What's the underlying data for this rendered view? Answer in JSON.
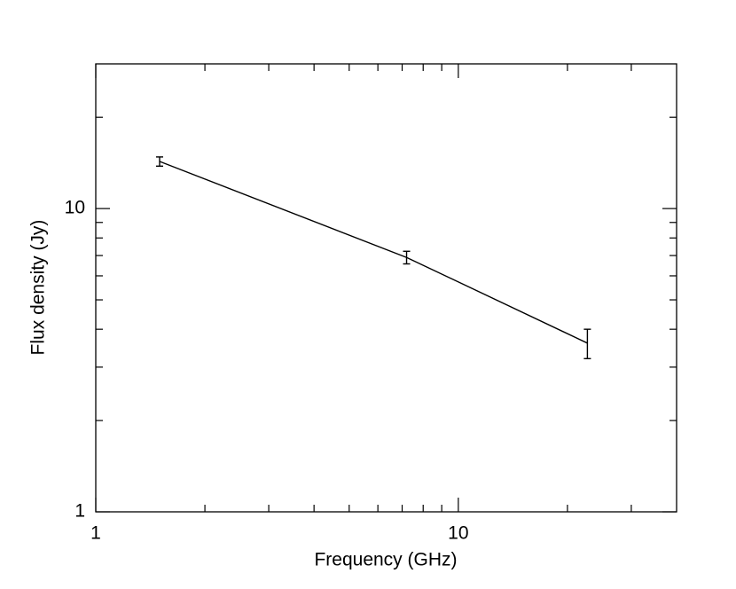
{
  "chart_data": {
    "type": "line",
    "x_label": "Frequency (GHz)",
    "y_label": "Flux density (Jy)",
    "x": [
      1.5,
      7.2,
      22.7
    ],
    "series": [
      {
        "color": "#000000",
        "values": [
          14.3,
          6.9,
          3.6
        ],
        "errors": [
          0.5,
          0.33,
          0.4
        ]
      }
    ],
    "xlim": [
      1,
      40
    ],
    "ylim": [
      1,
      30
    ],
    "xticks": [
      1,
      10
    ],
    "yticks": [
      1,
      10
    ],
    "xminorticks": [
      2,
      3,
      4,
      5,
      6,
      7,
      8,
      9,
      20,
      30
    ],
    "yminorticks": [
      2,
      3,
      4,
      5,
      6,
      7,
      8,
      9,
      20
    ],
    "xscale": "log",
    "yscale": "log"
  }
}
